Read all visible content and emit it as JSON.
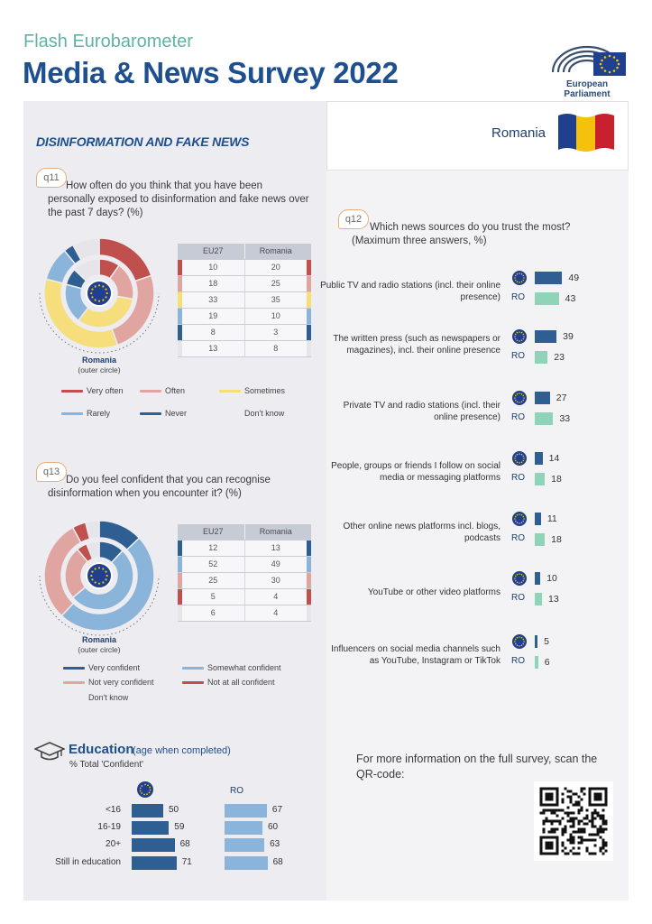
{
  "header": {
    "subtitle": "Flash Eurobarometer",
    "title": "Media & News Survey 2022",
    "logo_text": "European Parliament"
  },
  "country": {
    "name": "Romania",
    "flag_colors": [
      "#1f3f8f",
      "#f4c20d",
      "#c8202f"
    ]
  },
  "section_title": "DISINFORMATION AND FAKE NEWS",
  "colors": {
    "very_often": "#c0504d",
    "often": "#e0a5a0",
    "sometimes": "#f6de7d",
    "rarely": "#8ab4d9",
    "never": "#2f5f92",
    "dont_know": "#e6e6ea",
    "bar_eu": "#2f5f92",
    "bar_ro": "#8fd3b8",
    "edu_eu": "#2f5f92",
    "edu_ro": "#8ab4d9"
  },
  "q11": {
    "badge": "q11",
    "question": "How often do you think that you have been personally exposed to disinformation and fake news over the past 7 days? (%)",
    "table_headers": [
      "EU27",
      "Romania"
    ],
    "rows": [
      {
        "label": "Very often",
        "eu": 10,
        "ro": 20,
        "color": "#c0504d"
      },
      {
        "label": "Often",
        "eu": 18,
        "ro": 25,
        "color": "#e0a5a0"
      },
      {
        "label": "Sometimes",
        "eu": 33,
        "ro": 35,
        "color": "#f6de7d"
      },
      {
        "label": "Rarely",
        "eu": 19,
        "ro": 10,
        "color": "#8ab4d9"
      },
      {
        "label": "Never",
        "eu": 8,
        "ro": 3,
        "color": "#2f5f92"
      },
      {
        "label": "Don't know",
        "eu": 13,
        "ro": 8,
        "color": "#e6e6ea"
      }
    ],
    "donut_caption_title": "Romania",
    "donut_caption_sub": "(outer circle)"
  },
  "q13": {
    "badge": "q13",
    "question": "Do you feel confident that you can recognise disinformation when you encounter it? (%)",
    "table_headers": [
      "EU27",
      "Romania"
    ],
    "rows": [
      {
        "label": "Very confident",
        "eu": 12,
        "ro": 13,
        "color": "#2f5f92"
      },
      {
        "label": "Somewhat confident",
        "eu": 52,
        "ro": 49,
        "color": "#8ab4d9"
      },
      {
        "label": "Not very confident",
        "eu": 25,
        "ro": 30,
        "color": "#e0a5a0"
      },
      {
        "label": "Not at all confident",
        "eu": 5,
        "ro": 4,
        "color": "#c0504d"
      },
      {
        "label": "Don't know",
        "eu": 6,
        "ro": 4,
        "color": "#e6e6ea"
      }
    ],
    "donut_caption_title": "Romania",
    "donut_caption_sub": "(outer circle)"
  },
  "education": {
    "title": "Education",
    "subtitle": "(age when completed)",
    "note": "% Total 'Confident'",
    "ro_label": "RO",
    "rows": [
      {
        "label": "<16",
        "eu": 50,
        "ro": 67
      },
      {
        "label": "16-19",
        "eu": 59,
        "ro": 60
      },
      {
        "label": "20+",
        "eu": 68,
        "ro": 63
      },
      {
        "label": "Still in education",
        "eu": 71,
        "ro": 68
      }
    ]
  },
  "q12": {
    "badge": "q12",
    "question": "Which news sources do you trust the most? (Maximum three answers, %)",
    "ro_label": "RO",
    "sources": [
      {
        "label": "Public TV and radio stations (incl. their online presence)",
        "eu": 49,
        "ro": 43
      },
      {
        "label": "The written press (such as newspapers or magazines), incl. their online presence",
        "eu": 39,
        "ro": 23
      },
      {
        "label": "Private TV and radio stations (incl. their online presence)",
        "eu": 27,
        "ro": 33
      },
      {
        "label": "People, groups or friends I follow on social media or messaging platforms",
        "eu": 14,
        "ro": 18
      },
      {
        "label": "Other online news platforms incl. blogs, podcasts",
        "eu": 11,
        "ro": 18
      },
      {
        "label": "YouTube or other video platforms",
        "eu": 10,
        "ro": 13
      },
      {
        "label": "Influencers on social media channels such as YouTube, Instagram or TikTok",
        "eu": 5,
        "ro": 6
      }
    ]
  },
  "info": {
    "text": "For more information on the full survey, scan the QR-code:"
  }
}
